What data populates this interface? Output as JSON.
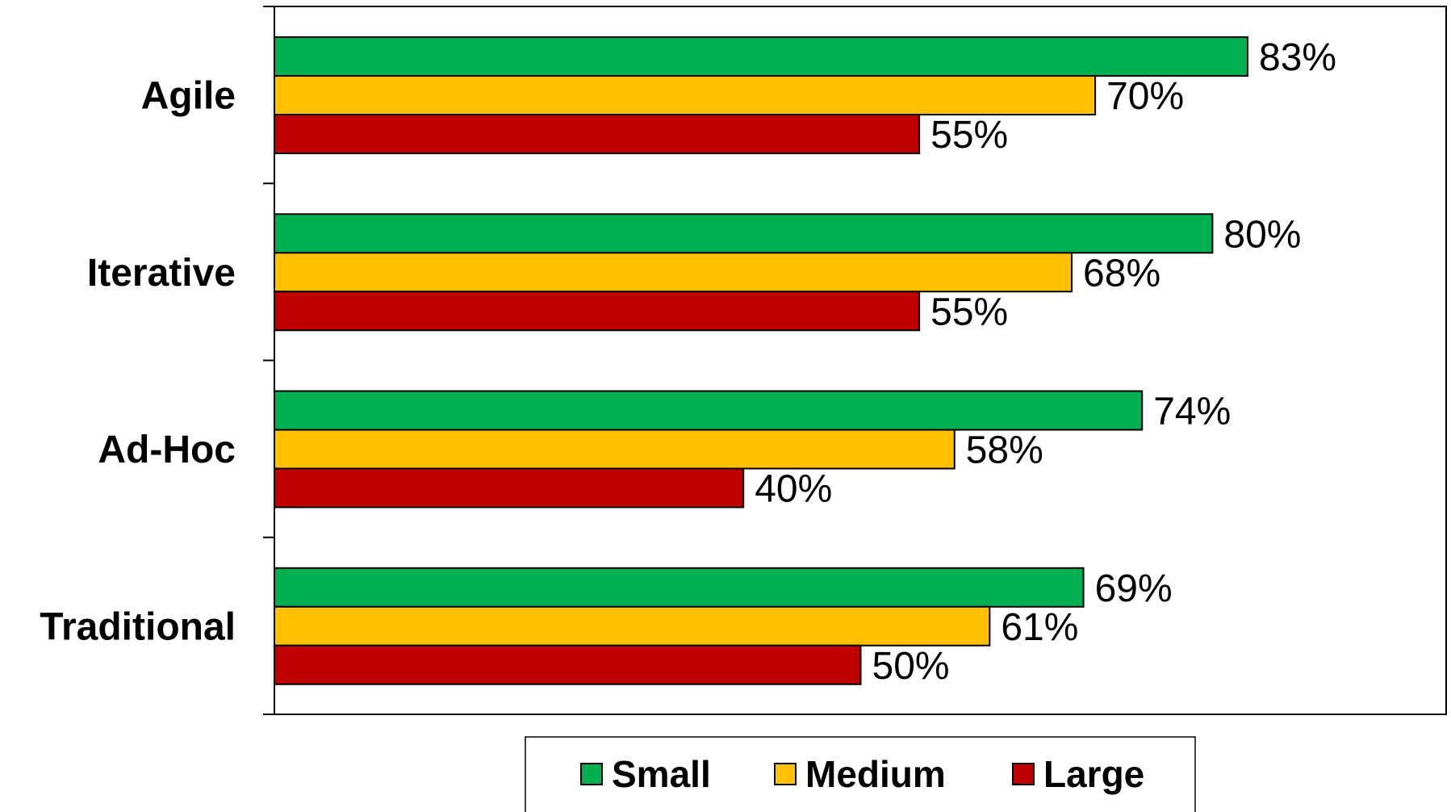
{
  "chart_data": {
    "type": "bar",
    "orientation": "horizontal",
    "categories": [
      "Agile",
      "Iterative",
      "Ad-Hoc",
      "Traditional"
    ],
    "series": [
      {
        "name": "Small",
        "color": "#00b050",
        "values": [
          83,
          80,
          74,
          69
        ],
        "labels": [
          "83%",
          "80%",
          "74%",
          "69%"
        ]
      },
      {
        "name": "Medium",
        "color": "#ffc000",
        "values": [
          70,
          68,
          58,
          61
        ],
        "labels": [
          "70%",
          "68%",
          "58%",
          "61%"
        ]
      },
      {
        "name": "Large",
        "color": "#c00000",
        "values": [
          55,
          55,
          40,
          50
        ],
        "labels": [
          "55%",
          "55%",
          "40%",
          "50%"
        ]
      }
    ],
    "xlim": [
      0,
      100
    ],
    "value_format": "percent",
    "grid": false,
    "legend": "bottom"
  }
}
